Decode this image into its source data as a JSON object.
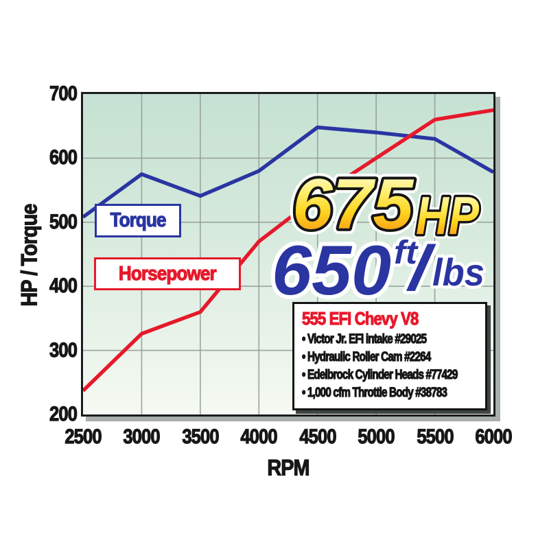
{
  "chart_data": {
    "type": "line",
    "xlabel": "RPM",
    "ylabel": "HP / Torque",
    "xlim": [
      2500,
      6000
    ],
    "ylim": [
      200,
      700
    ],
    "x_ticks": [
      2500,
      3000,
      3500,
      4000,
      4500,
      5000,
      5500,
      6000
    ],
    "y_ticks": [
      200,
      300,
      400,
      500,
      600,
      700
    ],
    "grid": true,
    "legend_position": "inside-left",
    "x": [
      2500,
      3000,
      3500,
      4000,
      4500,
      5000,
      5500,
      6000
    ],
    "series": [
      {
        "name": "Torque",
        "color": "#2a35a2",
        "values": [
          508,
          575,
          541,
          580,
          648,
          640,
          630,
          578
        ]
      },
      {
        "name": "Horsepower",
        "color": "#e6192b",
        "values": [
          237,
          326,
          360,
          470,
          540,
          600,
          660,
          675
        ]
      }
    ]
  },
  "callout": {
    "hp_value": "675",
    "hp_unit": "HP",
    "torque_value": "650",
    "torque_unit_top": "ft",
    "torque_slash": "/",
    "torque_unit_bottom": "lbs"
  },
  "info_box": {
    "title": "555 EFI Chevy V8",
    "items": [
      "Victor Jr. EFI intake #29025",
      "Hydraulic Roller Cam #2264",
      "Edelbrock Cylinder Heads #77429",
      "1,000 cfm Throttle Body #38783"
    ]
  },
  "colors": {
    "torque_line": "#2a35a2",
    "horsepower_line": "#e6192b",
    "grid": "#9aa39d",
    "frame": "#1b1b1b",
    "frame_shadow": "#a9afab",
    "info_title": "#e8192c",
    "gold_top": "#fffdf0",
    "gold_mid": "#ffd31e",
    "gold_bottom": "#f58a1f",
    "plot_bg_top": "#c6e1d3",
    "plot_bg_bottom": "#f5faf3"
  }
}
